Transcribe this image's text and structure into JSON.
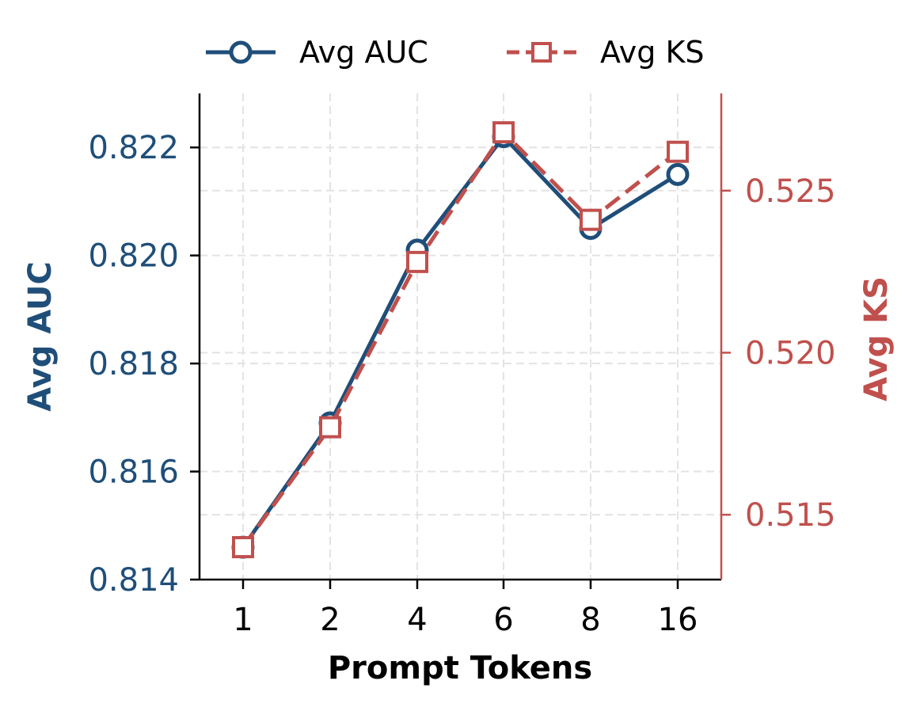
{
  "chart_data": {
    "type": "line",
    "categories": [
      "1",
      "2",
      "4",
      "6",
      "8",
      "16"
    ],
    "xlabel": "Prompt Tokens",
    "ylabel_left": "Avg AUC",
    "ylabel_right": "Avg KS",
    "ylim_left": [
      0.814,
      0.823
    ],
    "yticks_left": [
      "0.814",
      "0.816",
      "0.818",
      "0.820",
      "0.822"
    ],
    "ylim_right": [
      0.513,
      0.528
    ],
    "yticks_right": [
      "0.515",
      "0.520",
      "0.525"
    ],
    "grid": true,
    "legend_position": "top",
    "series": [
      {
        "name": "Avg AUC",
        "axis": "left",
        "values": [
          0.8146,
          0.8169,
          0.8201,
          0.8222,
          0.8205,
          0.8215
        ],
        "color": "#1f4e79",
        "marker": "circle",
        "linestyle": "solid"
      },
      {
        "name": "Avg KS",
        "axis": "right",
        "values": [
          0.514,
          0.5177,
          0.5228,
          0.5268,
          0.5241,
          0.5262
        ],
        "color": "#c0504d",
        "marker": "square",
        "linestyle": "dashed"
      }
    ]
  }
}
